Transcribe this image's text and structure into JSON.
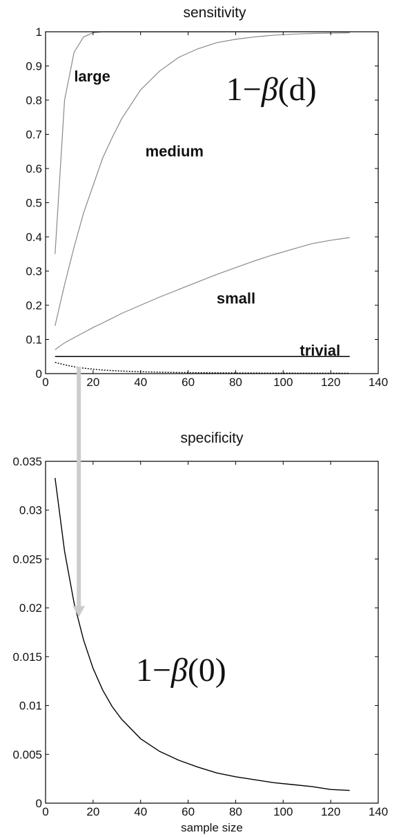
{
  "chart_data": [
    {
      "type": "line",
      "title": "sensitivity",
      "xlabel": "",
      "ylabel": "",
      "xlim": [
        0,
        140
      ],
      "ylim": [
        0,
        1
      ],
      "xticks": [
        0,
        20,
        40,
        60,
        80,
        100,
        120,
        140
      ],
      "yticks": [
        0,
        0.1,
        0.2,
        0.3,
        0.4,
        0.5,
        0.6,
        0.7,
        0.8,
        0.9,
        1
      ],
      "x": [
        4,
        8,
        12,
        16,
        20,
        24,
        28,
        32,
        40,
        48,
        56,
        64,
        72,
        80,
        88,
        96,
        104,
        112,
        120,
        128
      ],
      "series": [
        {
          "name": "large",
          "color": "#888888",
          "values": [
            0.35,
            0.8,
            0.94,
            0.985,
            0.997,
            1.0,
            1.0,
            1.0,
            1.0,
            1.0,
            1.0,
            1.0,
            1.0,
            1.0,
            1.0,
            1.0,
            1.0,
            1.0,
            1.0,
            1.0
          ]
        },
        {
          "name": "medium",
          "color": "#888888",
          "values": [
            0.14,
            0.26,
            0.37,
            0.47,
            0.55,
            0.63,
            0.69,
            0.745,
            0.83,
            0.885,
            0.925,
            0.95,
            0.968,
            0.978,
            0.985,
            0.99,
            0.993,
            0.995,
            0.996,
            0.997
          ]
        },
        {
          "name": "small",
          "color": "#888888",
          "values": [
            0.07,
            0.09,
            0.105,
            0.12,
            0.135,
            0.148,
            0.162,
            0.176,
            0.2,
            0.224,
            0.246,
            0.268,
            0.29,
            0.31,
            0.33,
            0.348,
            0.364,
            0.38,
            0.39,
            0.398
          ]
        },
        {
          "name": "trivial",
          "color": "#000000",
          "values": [
            0.05,
            0.05,
            0.05,
            0.05,
            0.05,
            0.05,
            0.05,
            0.05,
            0.05,
            0.05,
            0.05,
            0.05,
            0.05,
            0.05,
            0.05,
            0.05,
            0.05,
            0.05,
            0.05,
            0.05
          ]
        },
        {
          "name": "",
          "color": "#000000",
          "dashed": true,
          "values": [
            0.033,
            0.026,
            0.02,
            0.016,
            0.013,
            0.0105,
            0.0088,
            0.0075,
            0.0055,
            0.0042,
            0.0033,
            0.0027,
            0.0023,
            0.002,
            0.0018,
            0.0016,
            0.0015,
            0.0014,
            0.0013,
            0.0012
          ]
        }
      ],
      "labels": [
        {
          "text": "large",
          "x": 12,
          "y": 0.855
        },
        {
          "text": "medium",
          "x": 42,
          "y": 0.635
        },
        {
          "text": "small",
          "x": 72,
          "y": 0.205
        },
        {
          "text": "trivial",
          "x": 107,
          "y": 0.053
        }
      ],
      "formula": {
        "prefix": "1−",
        "beta": "β",
        "arg": "(d)",
        "x": 76,
        "y": 0.8
      },
      "grid": false
    },
    {
      "type": "line",
      "title": "specificity",
      "xlabel": "sample size",
      "ylabel": "",
      "xlim": [
        0,
        140
      ],
      "ylim": [
        0,
        0.035
      ],
      "xticks": [
        0,
        20,
        40,
        60,
        80,
        100,
        120,
        140
      ],
      "yticks": [
        0,
        0.005,
        0.01,
        0.015,
        0.02,
        0.025,
        0.03,
        0.035
      ],
      "x": [
        4,
        8,
        12,
        16,
        20,
        24,
        28,
        32,
        40,
        48,
        56,
        64,
        72,
        80,
        88,
        96,
        104,
        112,
        120,
        128
      ],
      "series": [
        {
          "name": "",
          "color": "#000000",
          "values": [
            0.0333,
            0.0258,
            0.0205,
            0.0167,
            0.0138,
            0.0116,
            0.0099,
            0.0086,
            0.0066,
            0.0053,
            0.0044,
            0.0037,
            0.0031,
            0.0027,
            0.0024,
            0.0021,
            0.0019,
            0.0017,
            0.0014,
            0.0013
          ]
        }
      ],
      "formula": {
        "prefix": "1−",
        "beta": "β",
        "arg": "(0)",
        "x": 38,
        "y": 0.0125
      },
      "grid": false
    }
  ],
  "arrow": {
    "color": "#cccccc",
    "x": 14,
    "from_y_top": 0.02,
    "to_y_bottom": 0.0192
  }
}
